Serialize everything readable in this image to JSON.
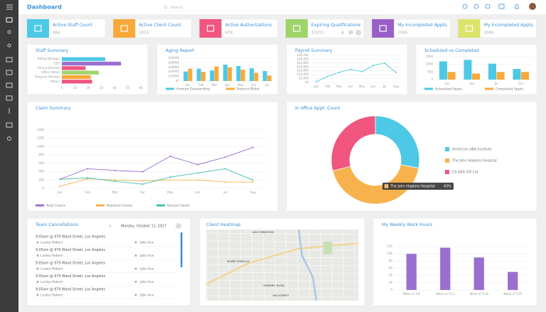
{
  "header": {
    "title": "Dashboard",
    "search": "Search"
  },
  "kpis": [
    {
      "title": "Active Staff Count",
      "value": 484,
      "color": "#4dc9e6"
    },
    {
      "title": "Active Client Count",
      "value": 1023,
      "color": "#f7a93b"
    },
    {
      "title": "Active Authorizations",
      "value": 678,
      "color": "#f0567f"
    },
    {
      "title": "Expiring Qualifications",
      "value": 12015,
      "color": "#9fd46a"
    },
    {
      "title": "My Incompleted Appts.",
      "value": 2095,
      "color": "#9a5fc7"
    },
    {
      "title": "My Incompleted Appts.",
      "value": 2095,
      "color": "#dbe36b"
    }
  ],
  "pager": {
    "page": 4,
    "size": 30
  },
  "chart_data": [
    {
      "type": "bar",
      "orientation": "horizontal",
      "title": "Staff Summary",
      "categories": [
        "Billing Manager",
        "CEO",
        "Clinical Director",
        "Office Admin",
        "Program Director",
        "Others"
      ],
      "values": [
        33,
        45,
        18,
        28,
        22,
        23
      ],
      "colors": [
        "#4dc9e6",
        "#9a6fd0",
        "#f0567f",
        "#9fd46a",
        "#f7a93b",
        "#f0567f"
      ],
      "xlim": [
        0,
        60
      ],
      "xticks": [
        0,
        10,
        20,
        30,
        40,
        50,
        60
      ]
    },
    {
      "type": "bar",
      "title": "Aging Report",
      "categories": [
        "Jan",
        "Feb",
        "Mar",
        "Apr",
        "May",
        "Jun",
        "Jul"
      ],
      "series": [
        {
          "name": "Amount Outstanding",
          "color": "#4dc9e6",
          "values": [
            21000,
            27000,
            23000,
            36000,
            33000,
            28000,
            22000
          ]
        },
        {
          "name": "Amount Billed",
          "color": "#f7a93b",
          "values": [
            27000,
            20000,
            32000,
            30000,
            25000,
            18000,
            12000
          ]
        }
      ],
      "ylim": [
        0,
        50000
      ],
      "yticks": [
        {
          "value": 0,
          "label": "$0"
        },
        {
          "value": 10000,
          "label": "$10000"
        },
        {
          "value": 20000,
          "label": "$20000"
        },
        {
          "value": 30000,
          "label": "$30000"
        },
        {
          "value": 40000,
          "label": "$40000"
        },
        {
          "value": 50000,
          "label": "$50000"
        }
      ],
      "grid": true,
      "legend": true
    },
    {
      "type": "line",
      "title": "Payroll Summary",
      "categories": [
        "Jan",
        "Feb",
        "Mar",
        "Apr",
        "May",
        "Jun",
        "Jul",
        "Aug"
      ],
      "series": [
        {
          "name": "Payroll",
          "color": "#4dc9e6",
          "values": [
            1000,
            8000,
            13000,
            17000,
            14000,
            22000,
            25000,
            13000
          ]
        }
      ],
      "ylim": [
        0,
        35000
      ],
      "yticks": [
        {
          "value": 0,
          "label": "$0"
        },
        {
          "value": 5000,
          "label": "$5,000"
        },
        {
          "value": 10000,
          "label": "$10,000"
        },
        {
          "value": 15000,
          "label": "$15,000"
        },
        {
          "value": 20000,
          "label": "$20,000"
        },
        {
          "value": 25000,
          "label": "$25,000"
        },
        {
          "value": 30000,
          "label": "$30,000"
        },
        {
          "value": 35000,
          "label": "$35,000"
        }
      ],
      "grid": true,
      "legend": false
    },
    {
      "type": "bar",
      "title": "Scheduled vs Completed",
      "categories": [
        "Jan",
        "Apr",
        "Jul",
        "Oct"
      ],
      "series": [
        {
          "name": "Scheduled Appts.",
          "color": "#4dc9e6",
          "values": [
            1200,
            1300,
            1050,
            700
          ]
        },
        {
          "name": "Completed Appts.",
          "color": "#f7a93b",
          "values": [
            500,
            400,
            500,
            500
          ]
        }
      ],
      "ylim": [
        0,
        1500
      ],
      "yticks": [
        0,
        500,
        1000,
        1500
      ],
      "grid": true,
      "legend": true
    },
    {
      "type": "line",
      "title": "Claim Summary",
      "categories": [
        "Jan",
        "Feb",
        "Mar",
        "Apr",
        "May",
        "Jun",
        "Jul",
        "Aug"
      ],
      "series": [
        {
          "name": "Total Claims",
          "color": "#9a6fd0",
          "values": [
            220,
            470,
            430,
            400,
            770,
            570,
            750,
            980
          ]
        },
        {
          "name": "Rejected Claims",
          "color": "#f7b24d",
          "values": [
            50,
            230,
            200,
            180,
            200,
            200,
            150,
            150
          ]
        },
        {
          "name": "Denied Claims",
          "color": "#3fbfb0",
          "values": [
            220,
            250,
            170,
            100,
            270,
            370,
            470,
            200
          ]
        }
      ],
      "ylim": [
        0,
        1400
      ],
      "yticks": [
        0,
        200,
        400,
        600,
        800,
        1000,
        1200,
        1400
      ],
      "grid": true,
      "legend": true
    },
    {
      "type": "pie",
      "title": "In office Appt. Count",
      "labels": [
        "American ABA Institute",
        "The John Hopkins Hospital",
        "CA ABA SVI Ltd"
      ],
      "values": [
        28,
        43,
        29
      ],
      "colors": [
        "#4dc9e6",
        "#f7b24d",
        "#f0567f"
      ],
      "tooltip": {
        "label": "The John Hopkins Hospital",
        "value": "43%"
      }
    },
    {
      "type": "bar",
      "title": "My Weekly Work Hours",
      "categories": [
        "Week of 7/4",
        "Week of 7/11",
        "Week of 7/18",
        "Week of 7/25"
      ],
      "values": [
        100,
        117,
        90,
        50
      ],
      "color": "#9a6fd0",
      "ylim": [
        0,
        120
      ],
      "yticks": [
        0,
        20,
        40,
        60,
        80,
        100,
        120
      ],
      "grid": true
    }
  ],
  "cancellations": {
    "title": "Team Cancellations",
    "date": "Monday, October 11, 2017",
    "items": [
      {
        "address": "9:05am @ 979 Wood Street, Los Angeles",
        "staff": "Lusley Robert",
        "client": "Jobs Ace"
      },
      {
        "address": "9:05am @ 979 Wood Street, Los Angeles",
        "staff": "Lusley Robert",
        "client": "Jobs Ace"
      },
      {
        "address": "9:05am @ 979 Wood Street, Los Angeles",
        "staff": "Lusley Robert",
        "client": "Jobs Ace"
      },
      {
        "address": "9:05am @ 979 Wood Street, Los Angeles",
        "staff": "Lusley Robert",
        "client": "Jobs Ace"
      },
      {
        "address": "9:05am @ 979 Wood Street, Los Angeles",
        "staff": "Lusley Robert",
        "client": "Jobs Ace"
      }
    ]
  },
  "heatmap": {
    "title": "Client Heatmap",
    "places": [
      "LOS CERRITOS",
      "BIXBY KNOLLS",
      "CHERRY GLEN",
      "HILLCREST"
    ]
  }
}
